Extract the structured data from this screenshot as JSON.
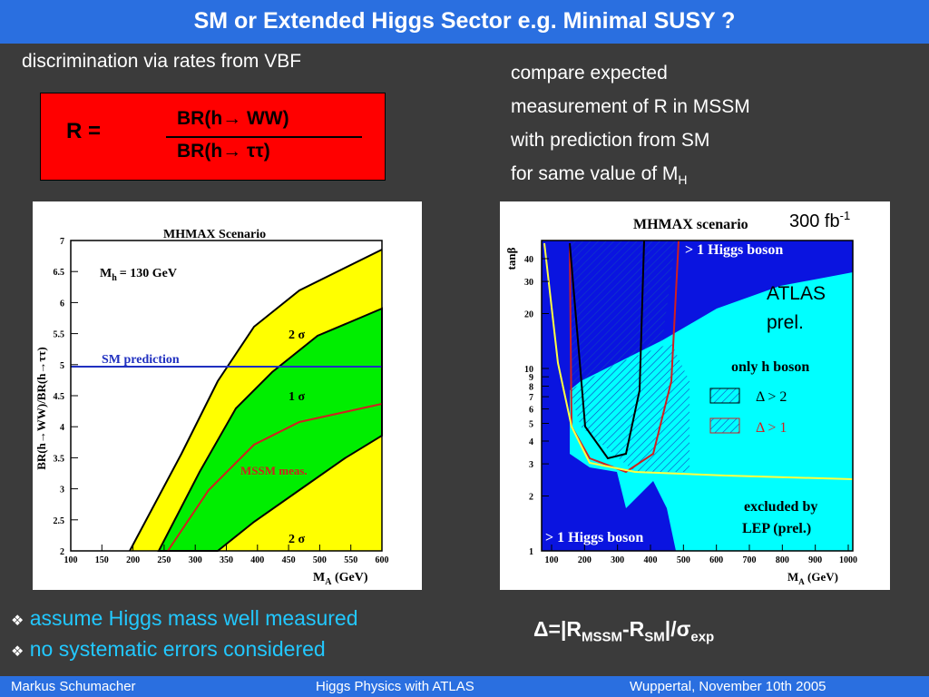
{
  "header": {
    "title": "SM or Extended Higgs Sector e.g. Minimal SUSY ?"
  },
  "left_text": "discrimination via rates from VBF",
  "formula": {
    "lhs": "R =",
    "numerator": "BR(h→ WW)",
    "denominator": "BR(h→ ττ)"
  },
  "right_text": {
    "lines": [
      "compare expected",
      "measurement of R in MSSM",
      "with prediction from SM",
      "for same value of M"
    ],
    "subscript": "H"
  },
  "left_plot": {
    "title": "MHMAX Scenario",
    "mass_label": "M",
    "mass_sub": "h",
    "mass_value": "= 130 GeV",
    "y_label": "BR(h→WW)/BR(h→ττ)",
    "x_label": "M",
    "x_label_sub": "A",
    "x_label_unit": " (GeV)",
    "sm_label": "SM prediction",
    "sigma2_upper": "2 σ",
    "sigma1": "1 σ",
    "mssm_label": "MSSM meas.",
    "sigma2_lower": "2 σ",
    "xticks": [
      100,
      150,
      200,
      250,
      300,
      350,
      400,
      450,
      500,
      550,
      600
    ],
    "yticks": [
      2,
      2.5,
      3,
      3.5,
      4,
      4.5,
      5,
      5.5,
      6,
      6.5,
      7
    ]
  },
  "right_plot": {
    "title": "MHMAX scenario",
    "lumi": "300 fb",
    "lumi_sup": "-1",
    "higgs_top": "> 1 Higgs boson",
    "atlas": "ATLAS",
    "prel": "prel.",
    "only_h": "only h boson",
    "delta2": "Δ > 2",
    "delta1": "Δ > 1",
    "excluded": "excluded by",
    "lep": "LEP (prel.)",
    "higgs_bottom": "> 1 Higgs boson",
    "y_label": "tanβ",
    "x_label": "M",
    "x_label_sub": "A",
    "x_label_unit": " (GeV)",
    "xticks": [
      100,
      200,
      300,
      400,
      500,
      600,
      700,
      800,
      900,
      1000
    ],
    "yticks": [
      1,
      2,
      3,
      4,
      5,
      6,
      7,
      8,
      9,
      10,
      20,
      30,
      40
    ]
  },
  "bullets": [
    "assume Higgs mass well measured",
    "no systematic errors considered"
  ],
  "delta_formula": {
    "a": "Δ=|R",
    "b": "MSSM",
    "c": "-R",
    "d": "SM",
    "e": "|/σ",
    "f": "exp"
  },
  "footer": {
    "author": "Markus  Schumacher",
    "talk": "Higgs Physics  with ATLAS",
    "place": "Wuppertal, November 10th 2005"
  }
}
